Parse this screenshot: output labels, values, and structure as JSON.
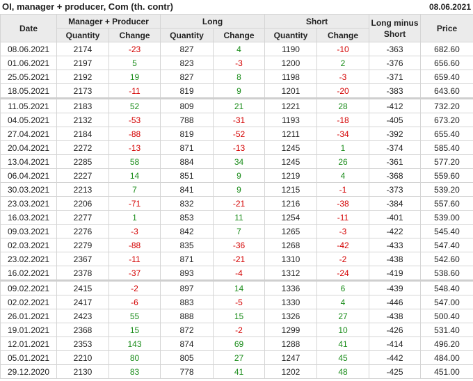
{
  "header": {
    "title": "OI, manager + producer, Com (th. contr)",
    "date": "08.06.2021"
  },
  "columns": {
    "date": "Date",
    "manager_producer": "Manager + Producer",
    "long": "Long",
    "short": "Short",
    "long_minus_short": "Long minus Short",
    "price": "Price",
    "quantity": "Quantity",
    "change": "Change"
  },
  "colors": {
    "positive": "#1a8c1a",
    "negative": "#d40000",
    "header_bg": "#ebebeb"
  },
  "groups": [
    [
      [
        "08.06.2021",
        "2174",
        "-23",
        "827",
        "4",
        "1190",
        "-10",
        "-363",
        "682.60"
      ],
      [
        "01.06.2021",
        "2197",
        "5",
        "823",
        "-3",
        "1200",
        "2",
        "-376",
        "656.60"
      ],
      [
        "25.05.2021",
        "2192",
        "19",
        "827",
        "8",
        "1198",
        "-3",
        "-371",
        "659.40"
      ],
      [
        "18.05.2021",
        "2173",
        "-11",
        "819",
        "9",
        "1201",
        "-20",
        "-383",
        "643.60"
      ]
    ],
    [
      [
        "11.05.2021",
        "2183",
        "52",
        "809",
        "21",
        "1221",
        "28",
        "-412",
        "732.20"
      ],
      [
        "04.05.2021",
        "2132",
        "-53",
        "788",
        "-31",
        "1193",
        "-18",
        "-405",
        "673.20"
      ],
      [
        "27.04.2021",
        "2184",
        "-88",
        "819",
        "-52",
        "1211",
        "-34",
        "-392",
        "655.40"
      ],
      [
        "20.04.2021",
        "2272",
        "-13",
        "871",
        "-13",
        "1245",
        "1",
        "-374",
        "585.40"
      ],
      [
        "13.04.2021",
        "2285",
        "58",
        "884",
        "34",
        "1245",
        "26",
        "-361",
        "577.20"
      ],
      [
        "06.04.2021",
        "2227",
        "14",
        "851",
        "9",
        "1219",
        "4",
        "-368",
        "559.60"
      ],
      [
        "30.03.2021",
        "2213",
        "7",
        "841",
        "9",
        "1215",
        "-1",
        "-373",
        "539.20"
      ],
      [
        "23.03.2021",
        "2206",
        "-71",
        "832",
        "-21",
        "1216",
        "-38",
        "-384",
        "557.60"
      ],
      [
        "16.03.2021",
        "2277",
        "1",
        "853",
        "11",
        "1254",
        "-11",
        "-401",
        "539.00"
      ],
      [
        "09.03.2021",
        "2276",
        "-3",
        "842",
        "7",
        "1265",
        "-3",
        "-422",
        "545.40"
      ],
      [
        "02.03.2021",
        "2279",
        "-88",
        "835",
        "-36",
        "1268",
        "-42",
        "-433",
        "547.40"
      ],
      [
        "23.02.2021",
        "2367",
        "-11",
        "871",
        "-21",
        "1310",
        "-2",
        "-438",
        "542.60"
      ],
      [
        "16.02.2021",
        "2378",
        "-37",
        "893",
        "-4",
        "1312",
        "-24",
        "-419",
        "538.60"
      ]
    ],
    [
      [
        "09.02.2021",
        "2415",
        "-2",
        "897",
        "14",
        "1336",
        "6",
        "-439",
        "548.40"
      ],
      [
        "02.02.2021",
        "2417",
        "-6",
        "883",
        "-5",
        "1330",
        "4",
        "-446",
        "547.00"
      ],
      [
        "26.01.2021",
        "2423",
        "55",
        "888",
        "15",
        "1326",
        "27",
        "-438",
        "500.40"
      ],
      [
        "19.01.2021",
        "2368",
        "15",
        "872",
        "-2",
        "1299",
        "10",
        "-426",
        "531.40"
      ],
      [
        "12.01.2021",
        "2353",
        "143",
        "874",
        "69",
        "1288",
        "41",
        "-414",
        "496.20"
      ],
      [
        "05.01.2021",
        "2210",
        "80",
        "805",
        "27",
        "1247",
        "45",
        "-442",
        "484.00"
      ],
      [
        "29.12.2020",
        "2130",
        "83",
        "778",
        "41",
        "1202",
        "48",
        "-425",
        "451.00"
      ]
    ]
  ]
}
